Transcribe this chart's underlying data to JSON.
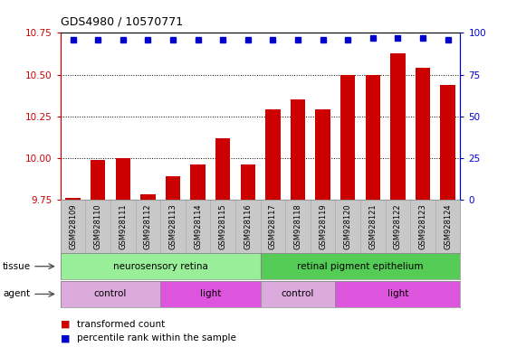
{
  "title": "GDS4980 / 10570771",
  "samples": [
    "GSM928109",
    "GSM928110",
    "GSM928111",
    "GSM928112",
    "GSM928113",
    "GSM928114",
    "GSM928115",
    "GSM928116",
    "GSM928117",
    "GSM928118",
    "GSM928119",
    "GSM928120",
    "GSM928121",
    "GSM928122",
    "GSM928123",
    "GSM928124"
  ],
  "transformed_count": [
    9.76,
    9.99,
    10.0,
    9.78,
    9.89,
    9.96,
    10.12,
    9.96,
    10.29,
    10.35,
    10.29,
    10.5,
    10.5,
    10.63,
    10.54,
    10.44
  ],
  "percentile_rank": [
    96,
    96,
    96,
    96,
    96,
    96,
    96,
    96,
    96,
    96,
    96,
    96,
    97,
    97,
    97,
    96
  ],
  "ylim_left": [
    9.75,
    10.75
  ],
  "ylim_right": [
    0,
    100
  ],
  "yticks_left": [
    9.75,
    10.0,
    10.25,
    10.5,
    10.75
  ],
  "yticks_right": [
    0,
    25,
    50,
    75,
    100
  ],
  "bar_color": "#cc0000",
  "dot_color": "#0000cc",
  "tissue_groups": [
    {
      "label": "neurosensory retina",
      "start": 0,
      "end": 8,
      "color": "#99ee99"
    },
    {
      "label": "retinal pigment epithelium",
      "start": 8,
      "end": 16,
      "color": "#55cc55"
    }
  ],
  "agent_groups": [
    {
      "label": "control",
      "start": 0,
      "end": 4,
      "color": "#ddaadd"
    },
    {
      "label": "light",
      "start": 4,
      "end": 8,
      "color": "#dd55dd"
    },
    {
      "label": "control",
      "start": 8,
      "end": 11,
      "color": "#ddaadd"
    },
    {
      "label": "light",
      "start": 11,
      "end": 16,
      "color": "#dd55dd"
    }
  ],
  "legend_items": [
    {
      "label": "transformed count",
      "color": "#cc0000"
    },
    {
      "label": "percentile rank within the sample",
      "color": "#0000cc"
    }
  ],
  "left_axis_color": "#cc0000",
  "right_axis_color": "#0000cc",
  "xtick_bg": "#c8c8c8"
}
